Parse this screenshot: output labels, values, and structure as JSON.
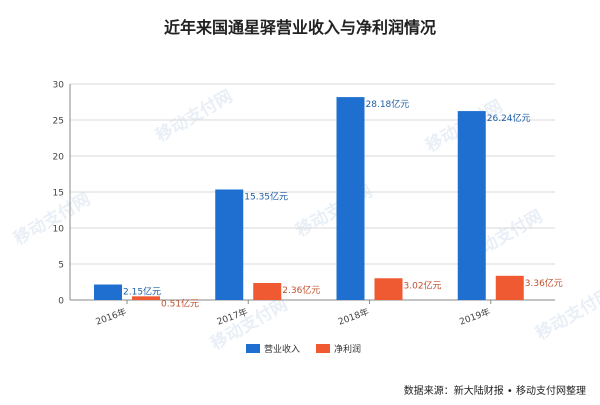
{
  "title": "近年来国通星驿营业收入与净利润情况",
  "source": "数据来源：新大陆财报 • 移动支付网整理",
  "watermark": "移动支付网",
  "chart_data": {
    "type": "bar",
    "title": "近年来国通星驿营业收入与净利润情况",
    "categories": [
      "2016年",
      "2017年",
      "2018年",
      "2019年"
    ],
    "series": [
      {
        "name": "营业收入",
        "values": [
          2.15,
          15.35,
          28.18,
          26.24
        ],
        "labels": [
          "2.15亿元",
          "15.35亿元",
          "28.18亿元",
          "26.24亿元"
        ],
        "color": "#1f6fd1",
        "label_color": "#1f5fa8"
      },
      {
        "name": "净利润",
        "values": [
          0.51,
          2.36,
          3.02,
          3.36
        ],
        "labels": [
          "0.51亿元",
          "2.36亿元",
          "3.02亿元",
          "3.36亿元"
        ],
        "color": "#f05a32",
        "label_color": "#c0502e"
      }
    ],
    "ylim": [
      0,
      30
    ],
    "yticks": [
      "0",
      "5",
      "10",
      "15",
      "20",
      "25",
      "30"
    ],
    "grid": true,
    "legend_position": "bottom"
  }
}
